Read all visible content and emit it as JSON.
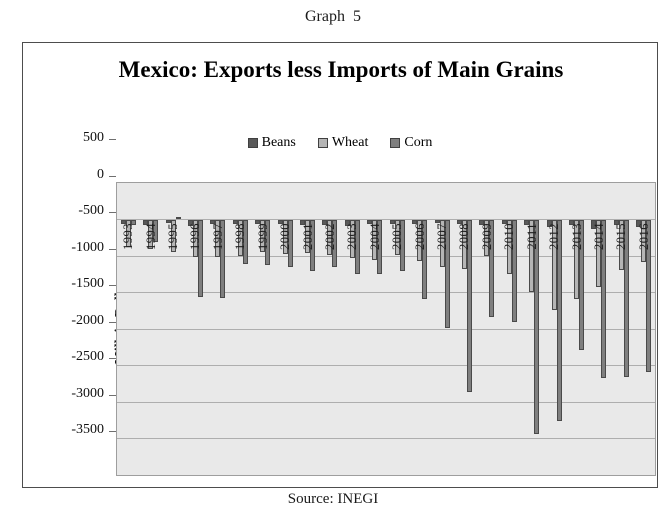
{
  "page": {
    "heading": "Graph  5",
    "source": "Source: INEGI"
  },
  "chart_data": {
    "type": "bar",
    "title": "Mexico: Exports less Imports of Main Grains",
    "ylabel": "Milloin Dollars",
    "xlabel": "",
    "ylim": [
      -3500,
      500
    ],
    "ytick_step": 500,
    "grid": true,
    "legend_position": "top-center",
    "plot_bg_color": "#e9e9e9",
    "categories": [
      "1993",
      "1994",
      "1995",
      "1996",
      "1997",
      "1998",
      "1999",
      "2000",
      "2001",
      "2002",
      "2003",
      "2004",
      "2005",
      "2006",
      "2007",
      "2008",
      "2009",
      "2010",
      "2011",
      "2012",
      "2013",
      "2014",
      "2015",
      "2016"
    ],
    "series": [
      {
        "name": "Beans",
        "color": "#595959",
        "values": [
          -60,
          -75,
          -50,
          -85,
          -60,
          -60,
          -65,
          -60,
          -70,
          -75,
          -90,
          -60,
          -55,
          -55,
          -50,
          -60,
          -70,
          -60,
          -80,
          -100,
          -80,
          -130,
          -80,
          -105
        ]
      },
      {
        "name": "Wheat",
        "color": "#b5b5b5",
        "values": [
          -375,
          -400,
          -440,
          -515,
          -520,
          -500,
          -450,
          -475,
          -460,
          -480,
          -530,
          -560,
          -480,
          -565,
          -650,
          -675,
          -500,
          -740,
          -990,
          -1240,
          -1090,
          -920,
          -690,
          -585
        ]
      },
      {
        "name": "Corn",
        "color": "#7f7f7f",
        "values": [
          -80,
          -310,
          30,
          -1060,
          -1080,
          -610,
          -625,
          -650,
          -710,
          -655,
          -740,
          -750,
          -700,
          -1090,
          -1480,
          -2360,
          -1340,
          -1400,
          -2940,
          -2760,
          -1790,
          -2165,
          -2160,
          -2090
        ]
      }
    ]
  }
}
